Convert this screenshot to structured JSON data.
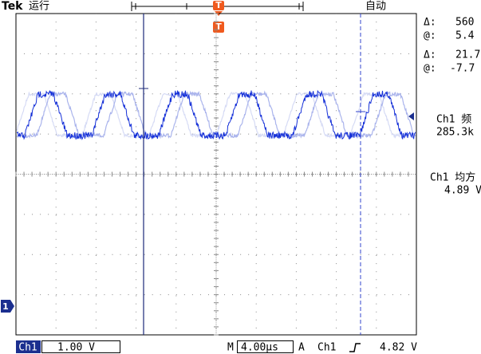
{
  "header": {
    "brand": "Tek",
    "status": "运行",
    "trigger_marker": "T",
    "mode": "自动"
  },
  "readouts": [
    {
      "label": "Δ:",
      "value": "560"
    },
    {
      "label": "@:",
      "value": "5.4"
    },
    {
      "label": "Δ:",
      "value": "21.7"
    },
    {
      "label": "@:",
      "value": "-7.7"
    }
  ],
  "measurements": [
    {
      "label": "Ch1 频",
      "value": "285.3k"
    },
    {
      "label": "Ch1 均方",
      "value": "4.89 V"
    }
  ],
  "channel_marker": "1",
  "footer": {
    "channel": "Ch1",
    "volts_div": "1.00 V",
    "m": "M",
    "time_div": "4.00µs",
    "a": "A",
    "trigger_channel": "Ch1",
    "trigger_level": "4.82 V"
  }
}
